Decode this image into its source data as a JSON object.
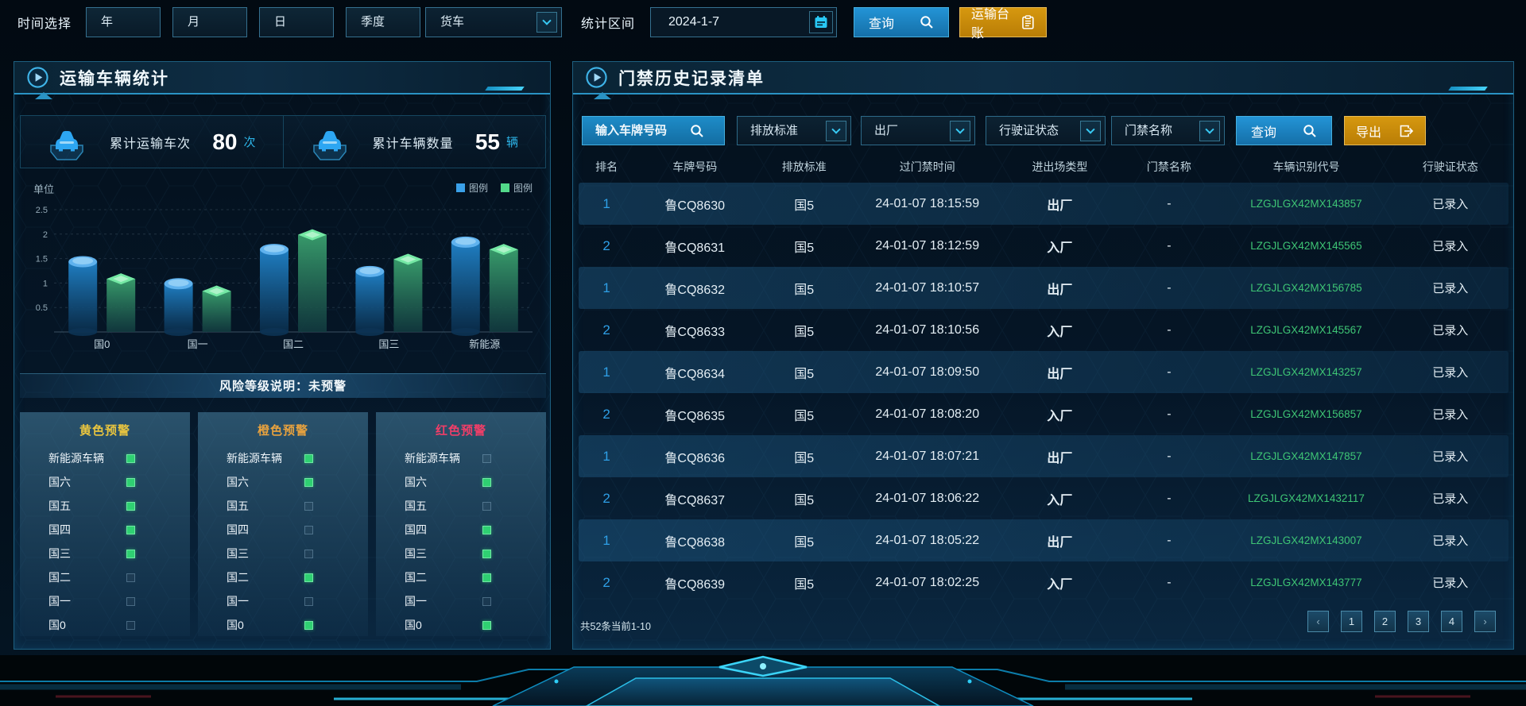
{
  "topbar": {
    "time_label": "时间选择",
    "time_buttons": [
      "年",
      "月",
      "日",
      "季度"
    ],
    "vehicle_select": "货车",
    "range_label": "统计区间",
    "date_value": "2024-1-7",
    "query_label": "查询",
    "ledger_label": "运输台账"
  },
  "left_panel": {
    "title": "运输车辆统计",
    "stats": [
      {
        "label": "累计运输车次",
        "value": "80",
        "unit": "次"
      },
      {
        "label": "累计车辆数量",
        "value": "55",
        "unit": "辆"
      }
    ],
    "risk_banner": "风险等级说明：未预警",
    "warning_columns": [
      {
        "title": "黄色预警",
        "color": "#e9c53f",
        "items": [
          {
            "label": "新能源车辆",
            "on": true
          },
          {
            "label": "国六",
            "on": true
          },
          {
            "label": "国五",
            "on": true
          },
          {
            "label": "国四",
            "on": true
          },
          {
            "label": "国三",
            "on": true
          },
          {
            "label": "国二",
            "on": false
          },
          {
            "label": "国一",
            "on": false
          },
          {
            "label": "国0",
            "on": false
          }
        ]
      },
      {
        "title": "橙色预警",
        "color": "#e8a23e",
        "items": [
          {
            "label": "新能源车辆",
            "on": true
          },
          {
            "label": "国六",
            "on": true
          },
          {
            "label": "国五",
            "on": false
          },
          {
            "label": "国四",
            "on": false
          },
          {
            "label": "国三",
            "on": false
          },
          {
            "label": "国二",
            "on": true
          },
          {
            "label": "国一",
            "on": false
          },
          {
            "label": "国0",
            "on": true
          }
        ]
      },
      {
        "title": "红色预警",
        "color": "#f23e68",
        "items": [
          {
            "label": "新能源车辆",
            "on": false
          },
          {
            "label": "国六",
            "on": true
          },
          {
            "label": "国五",
            "on": false
          },
          {
            "label": "国四",
            "on": true
          },
          {
            "label": "国三",
            "on": true
          },
          {
            "label": "国二",
            "on": true
          },
          {
            "label": "国一",
            "on": false
          },
          {
            "label": "国0",
            "on": true
          }
        ]
      }
    ]
  },
  "chart_data": {
    "type": "bar",
    "unit_label": "单位",
    "categories": [
      "国0",
      "国一",
      "国二",
      "国三",
      "新能源"
    ],
    "series": [
      {
        "name": "图例",
        "color": "#3aa0e8",
        "shape": "cylinder",
        "values": [
          1.55,
          1.1,
          1.8,
          1.35,
          1.95
        ]
      },
      {
        "name": "图例",
        "color": "#52d98a",
        "shape": "box",
        "values": [
          1.2,
          0.95,
          2.1,
          1.6,
          1.8
        ]
      }
    ],
    "ylim": [
      0,
      2.5
    ],
    "yticks": [
      0.5,
      1,
      1.5,
      2,
      2.5
    ],
    "grid": "dashed",
    "legend_position": "top-right"
  },
  "right_panel": {
    "title": "门禁历史记录清单",
    "filters": {
      "plate_placeholder": "输入车牌号码",
      "dropdowns": [
        "排放标准",
        "出厂",
        "行驶证状态",
        "门禁名称"
      ],
      "query_label": "查询",
      "export_label": "导出"
    },
    "table": {
      "headers": [
        "排名",
        "车牌号码",
        "排放标准",
        "过门禁时间",
        "进出场类型",
        "门禁名称",
        "车辆识别代号",
        "行驶证状态"
      ],
      "rows": [
        {
          "rank": "1",
          "plate": "鲁CQ8630",
          "standard": "国5",
          "time": "24-01-07 18:15:59",
          "type": "出厂",
          "gate": "-",
          "vin": "LZGJLGX42MX143857",
          "status": "已录入"
        },
        {
          "rank": "2",
          "plate": "鲁CQ8631",
          "standard": "国5",
          "time": "24-01-07 18:12:59",
          "type": "入厂",
          "gate": "-",
          "vin": "LZGJLGX42MX145565",
          "status": "已录入"
        },
        {
          "rank": "1",
          "plate": "鲁CQ8632",
          "standard": "国5",
          "time": "24-01-07 18:10:57",
          "type": "出厂",
          "gate": "-",
          "vin": "LZGJLGX42MX156785",
          "status": "已录入"
        },
        {
          "rank": "2",
          "plate": "鲁CQ8633",
          "standard": "国5",
          "time": "24-01-07 18:10:56",
          "type": "入厂",
          "gate": "-",
          "vin": "LZGJLGX42MX145567",
          "status": "已录入"
        },
        {
          "rank": "1",
          "plate": "鲁CQ8634",
          "standard": "国5",
          "time": "24-01-07 18:09:50",
          "type": "出厂",
          "gate": "-",
          "vin": "LZGJLGX42MX143257",
          "status": "已录入"
        },
        {
          "rank": "2",
          "plate": "鲁CQ8635",
          "standard": "国5",
          "time": "24-01-07 18:08:20",
          "type": "入厂",
          "gate": "-",
          "vin": "LZGJLGX42MX156857",
          "status": "已录入"
        },
        {
          "rank": "1",
          "plate": "鲁CQ8636",
          "standard": "国5",
          "time": "24-01-07 18:07:21",
          "type": "出厂",
          "gate": "-",
          "vin": "LZGJLGX42MX147857",
          "status": "已录入"
        },
        {
          "rank": "2",
          "plate": "鲁CQ8637",
          "standard": "国5",
          "time": "24-01-07 18:06:22",
          "type": "入厂",
          "gate": "-",
          "vin": "LZGJLGX42MX1432117",
          "status": "已录入"
        },
        {
          "rank": "1",
          "plate": "鲁CQ8638",
          "standard": "国5",
          "time": "24-01-07 18:05:22",
          "type": "出厂",
          "gate": "-",
          "vin": "LZGJLGX42MX143007",
          "status": "已录入"
        },
        {
          "rank": "2",
          "plate": "鲁CQ8639",
          "standard": "国5",
          "time": "24-01-07 18:02:25",
          "type": "入厂",
          "gate": "-",
          "vin": "LZGJLGX42MX143777",
          "status": "已录入"
        }
      ]
    },
    "pagination": {
      "summary": "共52条当前1-10",
      "prev_label": "‹",
      "pages": [
        "1",
        "2",
        "3",
        "4"
      ],
      "next_label": "›"
    }
  },
  "colors": {
    "accent_cyan": "#35c5f0",
    "button_blue": "#1d86c8",
    "button_gold": "#c8890b",
    "vin_green": "#3ec575",
    "rank_blue": "#2e9fe6",
    "warn_yellow": "#e9c53f",
    "warn_orange": "#e8a23e",
    "warn_red": "#f23e68"
  }
}
